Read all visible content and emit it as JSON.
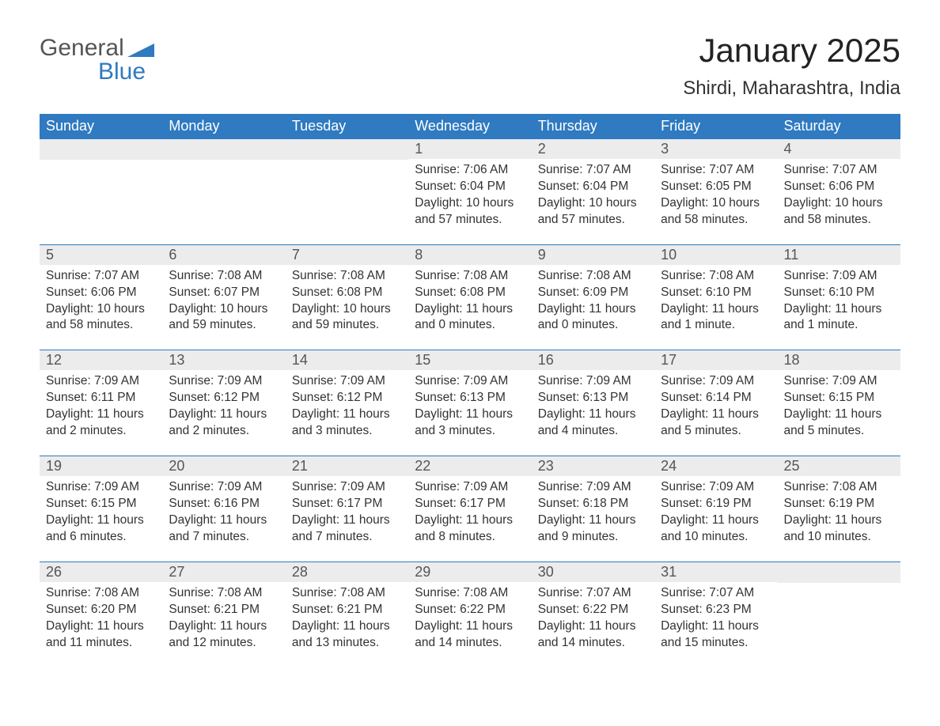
{
  "logo": {
    "word1": "General",
    "word2": "Blue",
    "accent_color": "#2f7ac0",
    "text_color": "#555555"
  },
  "header": {
    "month_title": "January 2025",
    "location": "Shirdi, Maharashtra, India"
  },
  "styling": {
    "header_bg": "#2f7ac0",
    "header_text": "#ffffff",
    "daynum_bg": "#ececec",
    "daynum_text": "#555555",
    "row_border": "#2f7ac0",
    "body_text": "#333333",
    "page_bg": "#ffffff",
    "font_family": "Arial",
    "month_title_fontsize": 42,
    "location_fontsize": 24,
    "dayheader_fontsize": 18,
    "daynum_fontsize": 18,
    "body_fontsize": 15.5
  },
  "day_headers": [
    "Sunday",
    "Monday",
    "Tuesday",
    "Wednesday",
    "Thursday",
    "Friday",
    "Saturday"
  ],
  "labels": {
    "sunrise": "Sunrise:",
    "sunset": "Sunset:",
    "daylight": "Daylight:"
  },
  "weeks": [
    [
      null,
      null,
      null,
      {
        "n": "1",
        "sunrise": "7:06 AM",
        "sunset": "6:04 PM",
        "daylight": "10 hours and 57 minutes."
      },
      {
        "n": "2",
        "sunrise": "7:07 AM",
        "sunset": "6:04 PM",
        "daylight": "10 hours and 57 minutes."
      },
      {
        "n": "3",
        "sunrise": "7:07 AM",
        "sunset": "6:05 PM",
        "daylight": "10 hours and 58 minutes."
      },
      {
        "n": "4",
        "sunrise": "7:07 AM",
        "sunset": "6:06 PM",
        "daylight": "10 hours and 58 minutes."
      }
    ],
    [
      {
        "n": "5",
        "sunrise": "7:07 AM",
        "sunset": "6:06 PM",
        "daylight": "10 hours and 58 minutes."
      },
      {
        "n": "6",
        "sunrise": "7:08 AM",
        "sunset": "6:07 PM",
        "daylight": "10 hours and 59 minutes."
      },
      {
        "n": "7",
        "sunrise": "7:08 AM",
        "sunset": "6:08 PM",
        "daylight": "10 hours and 59 minutes."
      },
      {
        "n": "8",
        "sunrise": "7:08 AM",
        "sunset": "6:08 PM",
        "daylight": "11 hours and 0 minutes."
      },
      {
        "n": "9",
        "sunrise": "7:08 AM",
        "sunset": "6:09 PM",
        "daylight": "11 hours and 0 minutes."
      },
      {
        "n": "10",
        "sunrise": "7:08 AM",
        "sunset": "6:10 PM",
        "daylight": "11 hours and 1 minute."
      },
      {
        "n": "11",
        "sunrise": "7:09 AM",
        "sunset": "6:10 PM",
        "daylight": "11 hours and 1 minute."
      }
    ],
    [
      {
        "n": "12",
        "sunrise": "7:09 AM",
        "sunset": "6:11 PM",
        "daylight": "11 hours and 2 minutes."
      },
      {
        "n": "13",
        "sunrise": "7:09 AM",
        "sunset": "6:12 PM",
        "daylight": "11 hours and 2 minutes."
      },
      {
        "n": "14",
        "sunrise": "7:09 AM",
        "sunset": "6:12 PM",
        "daylight": "11 hours and 3 minutes."
      },
      {
        "n": "15",
        "sunrise": "7:09 AM",
        "sunset": "6:13 PM",
        "daylight": "11 hours and 3 minutes."
      },
      {
        "n": "16",
        "sunrise": "7:09 AM",
        "sunset": "6:13 PM",
        "daylight": "11 hours and 4 minutes."
      },
      {
        "n": "17",
        "sunrise": "7:09 AM",
        "sunset": "6:14 PM",
        "daylight": "11 hours and 5 minutes."
      },
      {
        "n": "18",
        "sunrise": "7:09 AM",
        "sunset": "6:15 PM",
        "daylight": "11 hours and 5 minutes."
      }
    ],
    [
      {
        "n": "19",
        "sunrise": "7:09 AM",
        "sunset": "6:15 PM",
        "daylight": "11 hours and 6 minutes."
      },
      {
        "n": "20",
        "sunrise": "7:09 AM",
        "sunset": "6:16 PM",
        "daylight": "11 hours and 7 minutes."
      },
      {
        "n": "21",
        "sunrise": "7:09 AM",
        "sunset": "6:17 PM",
        "daylight": "11 hours and 7 minutes."
      },
      {
        "n": "22",
        "sunrise": "7:09 AM",
        "sunset": "6:17 PM",
        "daylight": "11 hours and 8 minutes."
      },
      {
        "n": "23",
        "sunrise": "7:09 AM",
        "sunset": "6:18 PM",
        "daylight": "11 hours and 9 minutes."
      },
      {
        "n": "24",
        "sunrise": "7:09 AM",
        "sunset": "6:19 PM",
        "daylight": "11 hours and 10 minutes."
      },
      {
        "n": "25",
        "sunrise": "7:08 AM",
        "sunset": "6:19 PM",
        "daylight": "11 hours and 10 minutes."
      }
    ],
    [
      {
        "n": "26",
        "sunrise": "7:08 AM",
        "sunset": "6:20 PM",
        "daylight": "11 hours and 11 minutes."
      },
      {
        "n": "27",
        "sunrise": "7:08 AM",
        "sunset": "6:21 PM",
        "daylight": "11 hours and 12 minutes."
      },
      {
        "n": "28",
        "sunrise": "7:08 AM",
        "sunset": "6:21 PM",
        "daylight": "11 hours and 13 minutes."
      },
      {
        "n": "29",
        "sunrise": "7:08 AM",
        "sunset": "6:22 PM",
        "daylight": "11 hours and 14 minutes."
      },
      {
        "n": "30",
        "sunrise": "7:07 AM",
        "sunset": "6:22 PM",
        "daylight": "11 hours and 14 minutes."
      },
      {
        "n": "31",
        "sunrise": "7:07 AM",
        "sunset": "6:23 PM",
        "daylight": "11 hours and 15 minutes."
      },
      null
    ]
  ]
}
